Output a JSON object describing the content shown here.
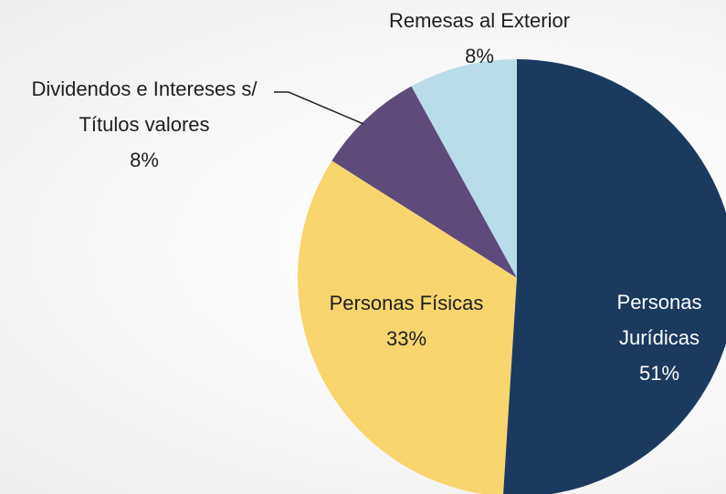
{
  "chart_data": {
    "type": "pie",
    "categories": [
      "Personas Jurídicas",
      "Personas Físicas",
      "Dividendos e Intereses s/ Títulos valores",
      "Remesas al Exterior"
    ],
    "values": [
      51,
      33,
      8,
      8
    ],
    "value_labels": [
      "51%",
      "33%",
      "8%",
      "8%"
    ],
    "colors": [
      "#1b3a5f",
      "#f9d56e",
      "#5e4a7b",
      "#b8dde9"
    ]
  }
}
